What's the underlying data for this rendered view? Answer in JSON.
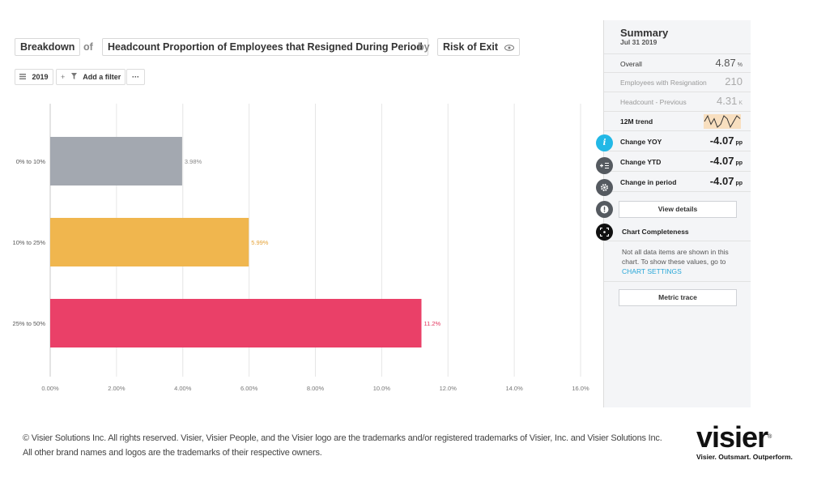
{
  "header": {
    "breakdown_label": "Breakdown",
    "of_label": "of",
    "metric_label": "Headcount Proportion of Employees that Resigned During Period",
    "by_label": "by",
    "dimension_label": "Risk of Exit",
    "eye_icon": "eye-icon"
  },
  "toolbar": {
    "period_label": "2019",
    "filter_label": "Add a filter",
    "more_label": "···"
  },
  "chart_data": {
    "type": "bar",
    "orientation": "horizontal",
    "categories": [
      "0% to 10%",
      "10% to 25%",
      "25% to 50%"
    ],
    "values": [
      3.98,
      5.99,
      11.2
    ],
    "value_labels": [
      "3.98%",
      "5.99%",
      "11.2%"
    ],
    "colors": [
      "#a3a8b0",
      "#f0b64e",
      "#ea4068"
    ],
    "label_colors": [
      "#888888",
      "#e5a338",
      "#e2365e"
    ],
    "xlim": [
      0,
      16
    ],
    "xticks": [
      "0.00%",
      "2.00%",
      "4.00%",
      "6.00%",
      "8.00%",
      "10.0%",
      "12.0%",
      "14.0%",
      "16.0%"
    ],
    "grid": true
  },
  "summary": {
    "title": "Summary",
    "date": "Jul 31 2019",
    "overall_label": "Overall",
    "overall_value": "4.87",
    "overall_unit": "%",
    "resign_label": "Employees with Resignation",
    "resign_value": "210",
    "headcount_label": "Headcount - Previous",
    "headcount_value": "4.31",
    "headcount_unit": "K",
    "trend_label": "12M trend",
    "yoy_label": "Change YOY",
    "yoy_value": "-4.07",
    "yoy_unit": "pp",
    "ytd_label": "Change YTD",
    "ytd_value": "-4.07",
    "ytd_unit": "pp",
    "period_label": "Change in period",
    "period_value": "-4.07",
    "period_unit": "pp",
    "view_details": "View details",
    "completeness_title": "Chart Completeness",
    "completeness_note": "Not all data items are shown in this chart. To show these values, go to",
    "completeness_link": "CHART SETTINGS",
    "metric_trace": "Metric trace",
    "trend_values": [
      4,
      6,
      3,
      5,
      2,
      3,
      6,
      5,
      2,
      4,
      6,
      5
    ]
  },
  "side_icons": {
    "info": "info-icon",
    "add": "add-list-icon",
    "settings": "gear-icon",
    "alert": "alert-icon",
    "focus": "focus-icon",
    "colors": [
      "#22b8e6",
      "#555a60",
      "#555a60",
      "#555a60",
      "#111111"
    ]
  },
  "footer": {
    "line1": "© Visier Solutions Inc. All rights reserved. Visier, Visier People, and the Visier logo are the trademarks and/or registered trademarks of Visier, Inc. and Visier Solutions Inc.",
    "line2": "All other brand names and logos are the trademarks of their respective owners."
  },
  "brand": {
    "logo": "visier",
    "reg": "®",
    "tagline": "Visier. Outsmart. Outperform."
  }
}
